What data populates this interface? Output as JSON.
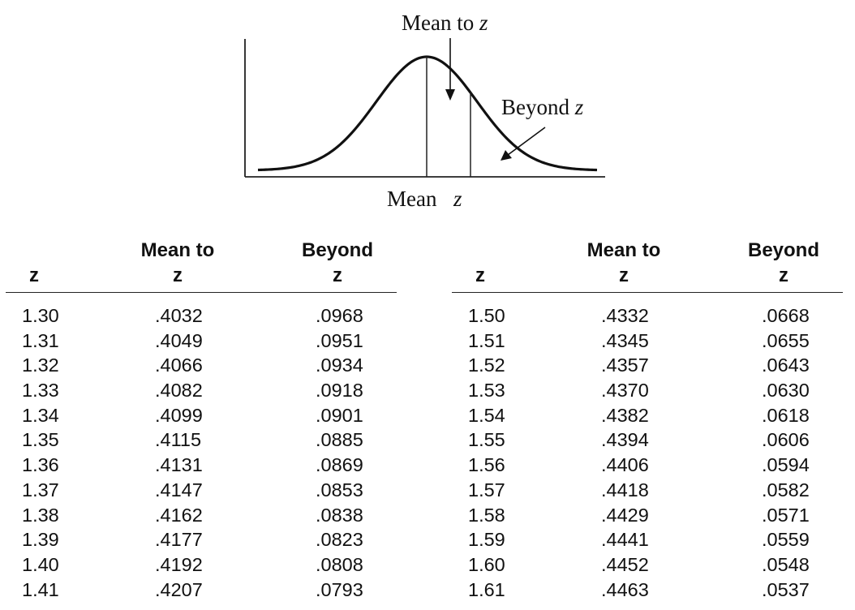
{
  "figure": {
    "label_mean_to_z": {
      "text": "Mean to ",
      "var": "z"
    },
    "label_beyond_z": {
      "text": "Beyond ",
      "var": "z"
    },
    "axis_mean": "Mean",
    "axis_z": "z"
  },
  "columns": {
    "z": "z",
    "mean_to_line1": "Mean to",
    "mean_to_line2": "z",
    "beyond_line1": "Beyond",
    "beyond_line2": "z"
  },
  "left_rows": [
    [
      "1.30",
      ".4032",
      ".0968"
    ],
    [
      "1.31",
      ".4049",
      ".0951"
    ],
    [
      "1.32",
      ".4066",
      ".0934"
    ],
    [
      "1.33",
      ".4082",
      ".0918"
    ],
    [
      "1.34",
      ".4099",
      ".0901"
    ],
    [
      "1.35",
      ".4115",
      ".0885"
    ],
    [
      "1.36",
      ".4131",
      ".0869"
    ],
    [
      "1.37",
      ".4147",
      ".0853"
    ],
    [
      "1.38",
      ".4162",
      ".0838"
    ],
    [
      "1.39",
      ".4177",
      ".0823"
    ],
    [
      "1.40",
      ".4192",
      ".0808"
    ],
    [
      "1.41",
      ".4207",
      ".0793"
    ]
  ],
  "right_rows": [
    [
      "1.50",
      ".4332",
      ".0668"
    ],
    [
      "1.51",
      ".4345",
      ".0655"
    ],
    [
      "1.52",
      ".4357",
      ".0643"
    ],
    [
      "1.53",
      ".4370",
      ".0630"
    ],
    [
      "1.54",
      ".4382",
      ".0618"
    ],
    [
      "1.55",
      ".4394",
      ".0606"
    ],
    [
      "1.56",
      ".4406",
      ".0594"
    ],
    [
      "1.57",
      ".4418",
      ".0582"
    ],
    [
      "1.58",
      ".4429",
      ".0571"
    ],
    [
      "1.59",
      ".4441",
      ".0559"
    ],
    [
      "1.60",
      ".4452",
      ".0548"
    ],
    [
      "1.61",
      ".4463",
      ".0537"
    ]
  ]
}
